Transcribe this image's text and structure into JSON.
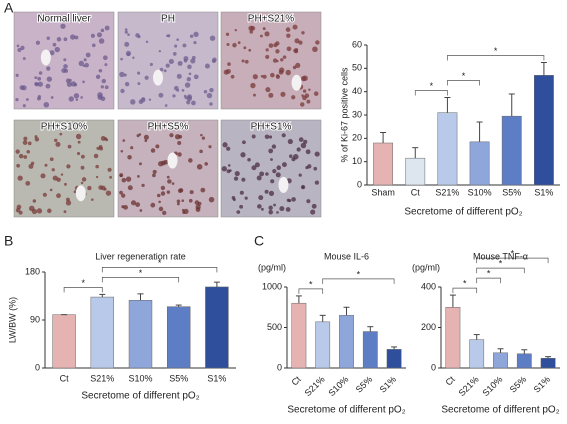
{
  "figure": {
    "panel_labels": [
      "A",
      "B",
      "C"
    ],
    "image_labels": [
      "Normal liver",
      "PH",
      "PH+S21%",
      "PH+S10%",
      "PH+S5%",
      "PH+S1%"
    ]
  },
  "chart_data": [
    {
      "type": "bar",
      "ylabel": "% of Ki-67 positive cells",
      "xlabel": "Secretome of different pO₂",
      "categories": [
        "Sham",
        "Ct",
        "S21%",
        "S10%",
        "S5%",
        "S1%"
      ],
      "values": [
        18,
        11.5,
        31,
        18.5,
        29.5,
        47
      ],
      "errors": [
        4.5,
        4.5,
        6.5,
        8.5,
        9.5,
        5.5
      ],
      "colors": [
        "#e6b3b3",
        "#dde5ef",
        "#b9c9e9",
        "#8ea6da",
        "#5d7dc5",
        "#2f4f9d"
      ],
      "ylim": [
        0,
        60
      ],
      "yticks": [
        0,
        10,
        20,
        30,
        40,
        50,
        60
      ],
      "significance": [
        {
          "label": "*",
          "between": [
            "Ct",
            "S21%"
          ]
        },
        {
          "label": "*",
          "between": [
            "S21%",
            "S10%"
          ]
        },
        {
          "label": "*",
          "between": [
            "S21%",
            "S1%"
          ]
        }
      ]
    },
    {
      "type": "bar",
      "title": "Liver regeneration rate",
      "ylabel": "LW/BW (%)",
      "xlabel": "Secretome of different pO₂",
      "categories": [
        "Ct",
        "S21%",
        "S10%",
        "S5%",
        "S1%"
      ],
      "values": [
        100,
        133,
        127,
        115,
        152
      ],
      "errors": [
        0,
        5,
        12,
        3,
        9
      ],
      "colors": [
        "#e6b3b3",
        "#b9c9e9",
        "#8ea6da",
        "#5d7dc5",
        "#2f4f9d"
      ],
      "ylim": [
        0,
        180
      ],
      "yticks": [
        0,
        90,
        180
      ],
      "significance": [
        {
          "label": "*",
          "between": [
            "Ct",
            "S21%"
          ]
        },
        {
          "label": "*",
          "between": [
            "S21%",
            "S5%"
          ]
        },
        {
          "label": "*",
          "between": [
            "S21%",
            "S1%"
          ]
        }
      ]
    },
    {
      "type": "bar",
      "title": "Mouse IL-6",
      "unit": "(pg/ml)",
      "xlabel": "Secretome of different pO₂",
      "categories": [
        "Ct",
        "S21%",
        "S10%",
        "S5%",
        "S1%"
      ],
      "values": [
        800,
        570,
        650,
        450,
        230
      ],
      "errors": [
        90,
        80,
        100,
        60,
        30
      ],
      "colors": [
        "#e6b3b3",
        "#b9c9e9",
        "#8ea6da",
        "#5d7dc5",
        "#2f4f9d"
      ],
      "ylim": [
        0,
        1000
      ],
      "yticks": [
        0,
        500,
        1000
      ],
      "significance": [
        {
          "label": "*",
          "between": [
            "Ct",
            "S21%"
          ]
        },
        {
          "label": "*",
          "between": [
            "S21%",
            "S1%"
          ]
        }
      ]
    },
    {
      "type": "bar",
      "title": "Mouse TNF-α",
      "unit": "(pg/ml)",
      "xlabel": "Secretome of different pO₂",
      "categories": [
        "Ct",
        "S21%",
        "S10%",
        "S5%",
        "S1%"
      ],
      "values": [
        300,
        140,
        75,
        70,
        48
      ],
      "errors": [
        60,
        25,
        20,
        20,
        8
      ],
      "colors": [
        "#e6b3b3",
        "#b9c9e9",
        "#8ea6da",
        "#5d7dc5",
        "#2f4f9d"
      ],
      "ylim": [
        0,
        400
      ],
      "yticks": [
        0,
        200,
        400
      ],
      "significance": [
        {
          "label": "*",
          "between": [
            "Ct",
            "S21%"
          ]
        },
        {
          "label": "*",
          "between": [
            "S21%",
            "S10%"
          ]
        },
        {
          "label": "*",
          "between": [
            "S21%",
            "S5%"
          ]
        },
        {
          "label": "*",
          "between": [
            "S21%",
            "S1%"
          ]
        }
      ]
    }
  ]
}
